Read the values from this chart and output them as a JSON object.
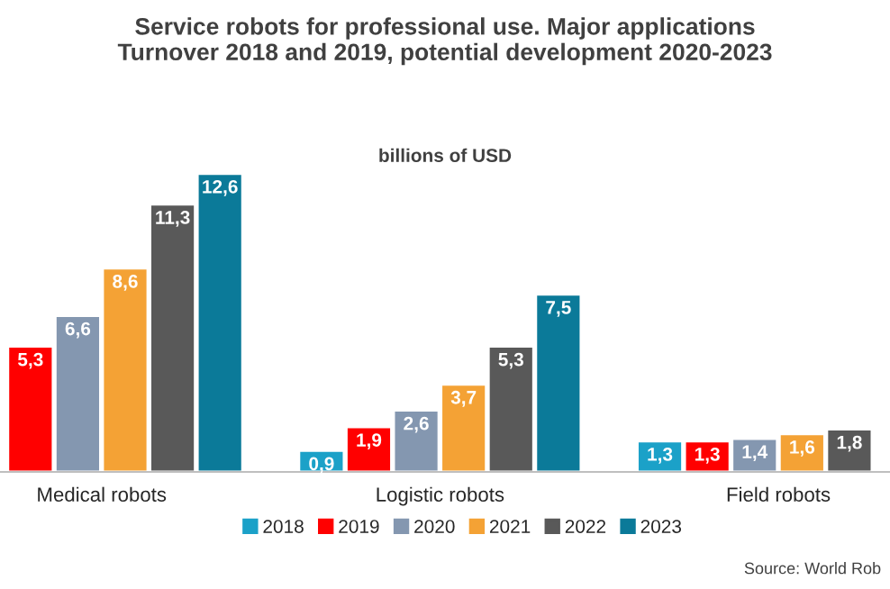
{
  "chart_data": {
    "type": "bar",
    "title": "Service robots for professional use. Major applications\nTurnover 2018 and 2019, potential development 2020-2023",
    "subtitle": "billions of USD",
    "categories": [
      "Medical robots",
      "Logistic robots",
      "Field robots"
    ],
    "series": [
      {
        "name": "2018",
        "color": "#1ba1c8",
        "values": [
          null,
          0.9,
          1.3
        ],
        "value_labels": [
          null,
          "0,9",
          "1,3"
        ]
      },
      {
        "name": "2019",
        "color": "#ff0000",
        "values": [
          5.3,
          1.9,
          1.3
        ],
        "value_labels": [
          "5,3",
          "1,9",
          "1,3"
        ]
      },
      {
        "name": "2020",
        "color": "#8497b0",
        "values": [
          6.6,
          2.6,
          1.4
        ],
        "value_labels": [
          "6,6",
          "2,6",
          "1,4"
        ]
      },
      {
        "name": "2021",
        "color": "#f4a235",
        "values": [
          8.6,
          3.7,
          1.6
        ],
        "value_labels": [
          "8,6",
          "3,7",
          "1,6"
        ]
      },
      {
        "name": "2022",
        "color": "#595959",
        "values": [
          11.3,
          5.3,
          1.8
        ],
        "value_labels": [
          "11,3",
          "5,3",
          "1,8"
        ]
      },
      {
        "name": "2023",
        "color": "#0b7a99",
        "values": [
          12.6,
          7.5,
          null
        ],
        "value_labels": [
          "12,6",
          "7,5",
          null
        ]
      }
    ],
    "legend": "bottom",
    "grid": false,
    "annotations": [
      "Source: World Rob"
    ]
  }
}
